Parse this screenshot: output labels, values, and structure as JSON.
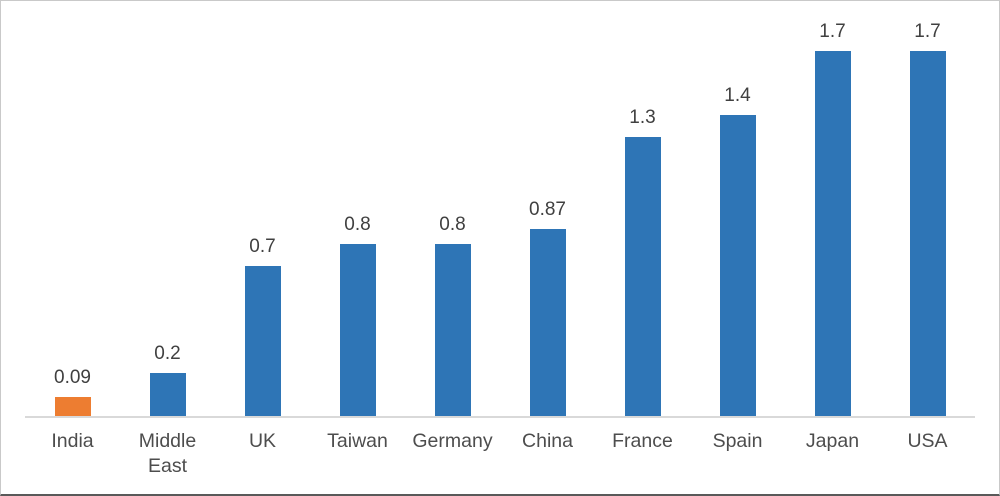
{
  "chart_data": {
    "type": "bar",
    "categories": [
      "India",
      "Middle East",
      "UK",
      "Taiwan",
      "Germany",
      "China",
      "France",
      "Spain",
      "Japan",
      "USA"
    ],
    "values": [
      0.09,
      0.2,
      0.7,
      0.8,
      0.8,
      0.87,
      1.3,
      1.4,
      1.7,
      1.7
    ],
    "labels": [
      "0.09",
      "0.2",
      "0.7",
      "0.8",
      "0.8",
      "0.87",
      "1.3",
      "1.4",
      "1.7",
      "1.7"
    ],
    "title": "",
    "xlabel": "",
    "ylabel": "",
    "ylim": [
      0,
      1.93
    ],
    "grid": false,
    "legend_position": "none",
    "highlight_index": 0,
    "colors": {
      "default_bar": "#2E75B6",
      "highlight_bar": "#ED7D31",
      "axis_line": "#D9D9D9",
      "value_label_text": "#404040",
      "category_label_text": "#4D4D4D",
      "background": "#FFFFFF"
    }
  }
}
